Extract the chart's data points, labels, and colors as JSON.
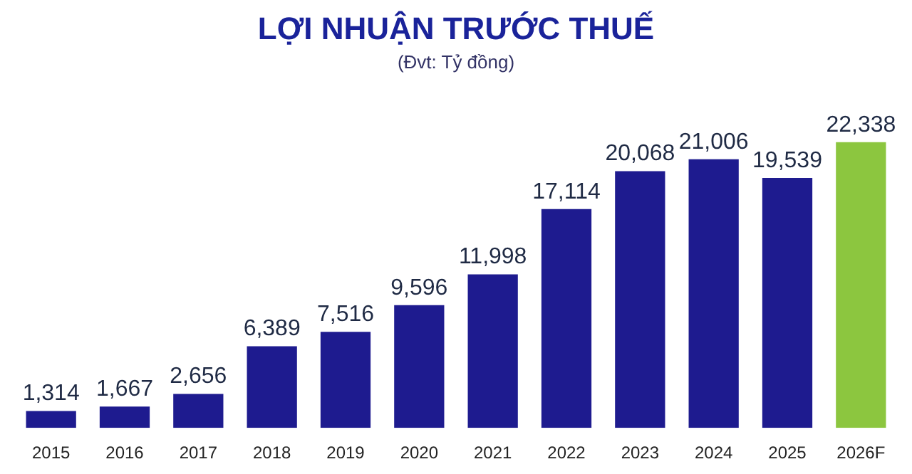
{
  "chart_data": {
    "type": "bar",
    "title": "LỢI NHUẬN TRƯỚC THUẾ",
    "subtitle": "(Đvt: Tỷ đồng)",
    "categories": [
      "2015",
      "2016",
      "2017",
      "2018",
      "2019",
      "2020",
      "2021",
      "2022",
      "2023",
      "2024",
      "2025",
      "2026F"
    ],
    "values": [
      1314,
      1667,
      2656,
      6389,
      7516,
      9596,
      11998,
      17114,
      20068,
      21006,
      19539,
      22338
    ],
    "value_labels": [
      "1,314",
      "1,667",
      "2,656",
      "6,389",
      "7,516",
      "9,596",
      "11,998",
      "17,114",
      "20,068",
      "21,006",
      "19,539",
      "22,338"
    ],
    "colors": [
      "#1e1b8f",
      "#1e1b8f",
      "#1e1b8f",
      "#1e1b8f",
      "#1e1b8f",
      "#1e1b8f",
      "#1e1b8f",
      "#1e1b8f",
      "#1e1b8f",
      "#1e1b8f",
      "#1e1b8f",
      "#8cc63f"
    ],
    "grid": false,
    "legend": false
  }
}
